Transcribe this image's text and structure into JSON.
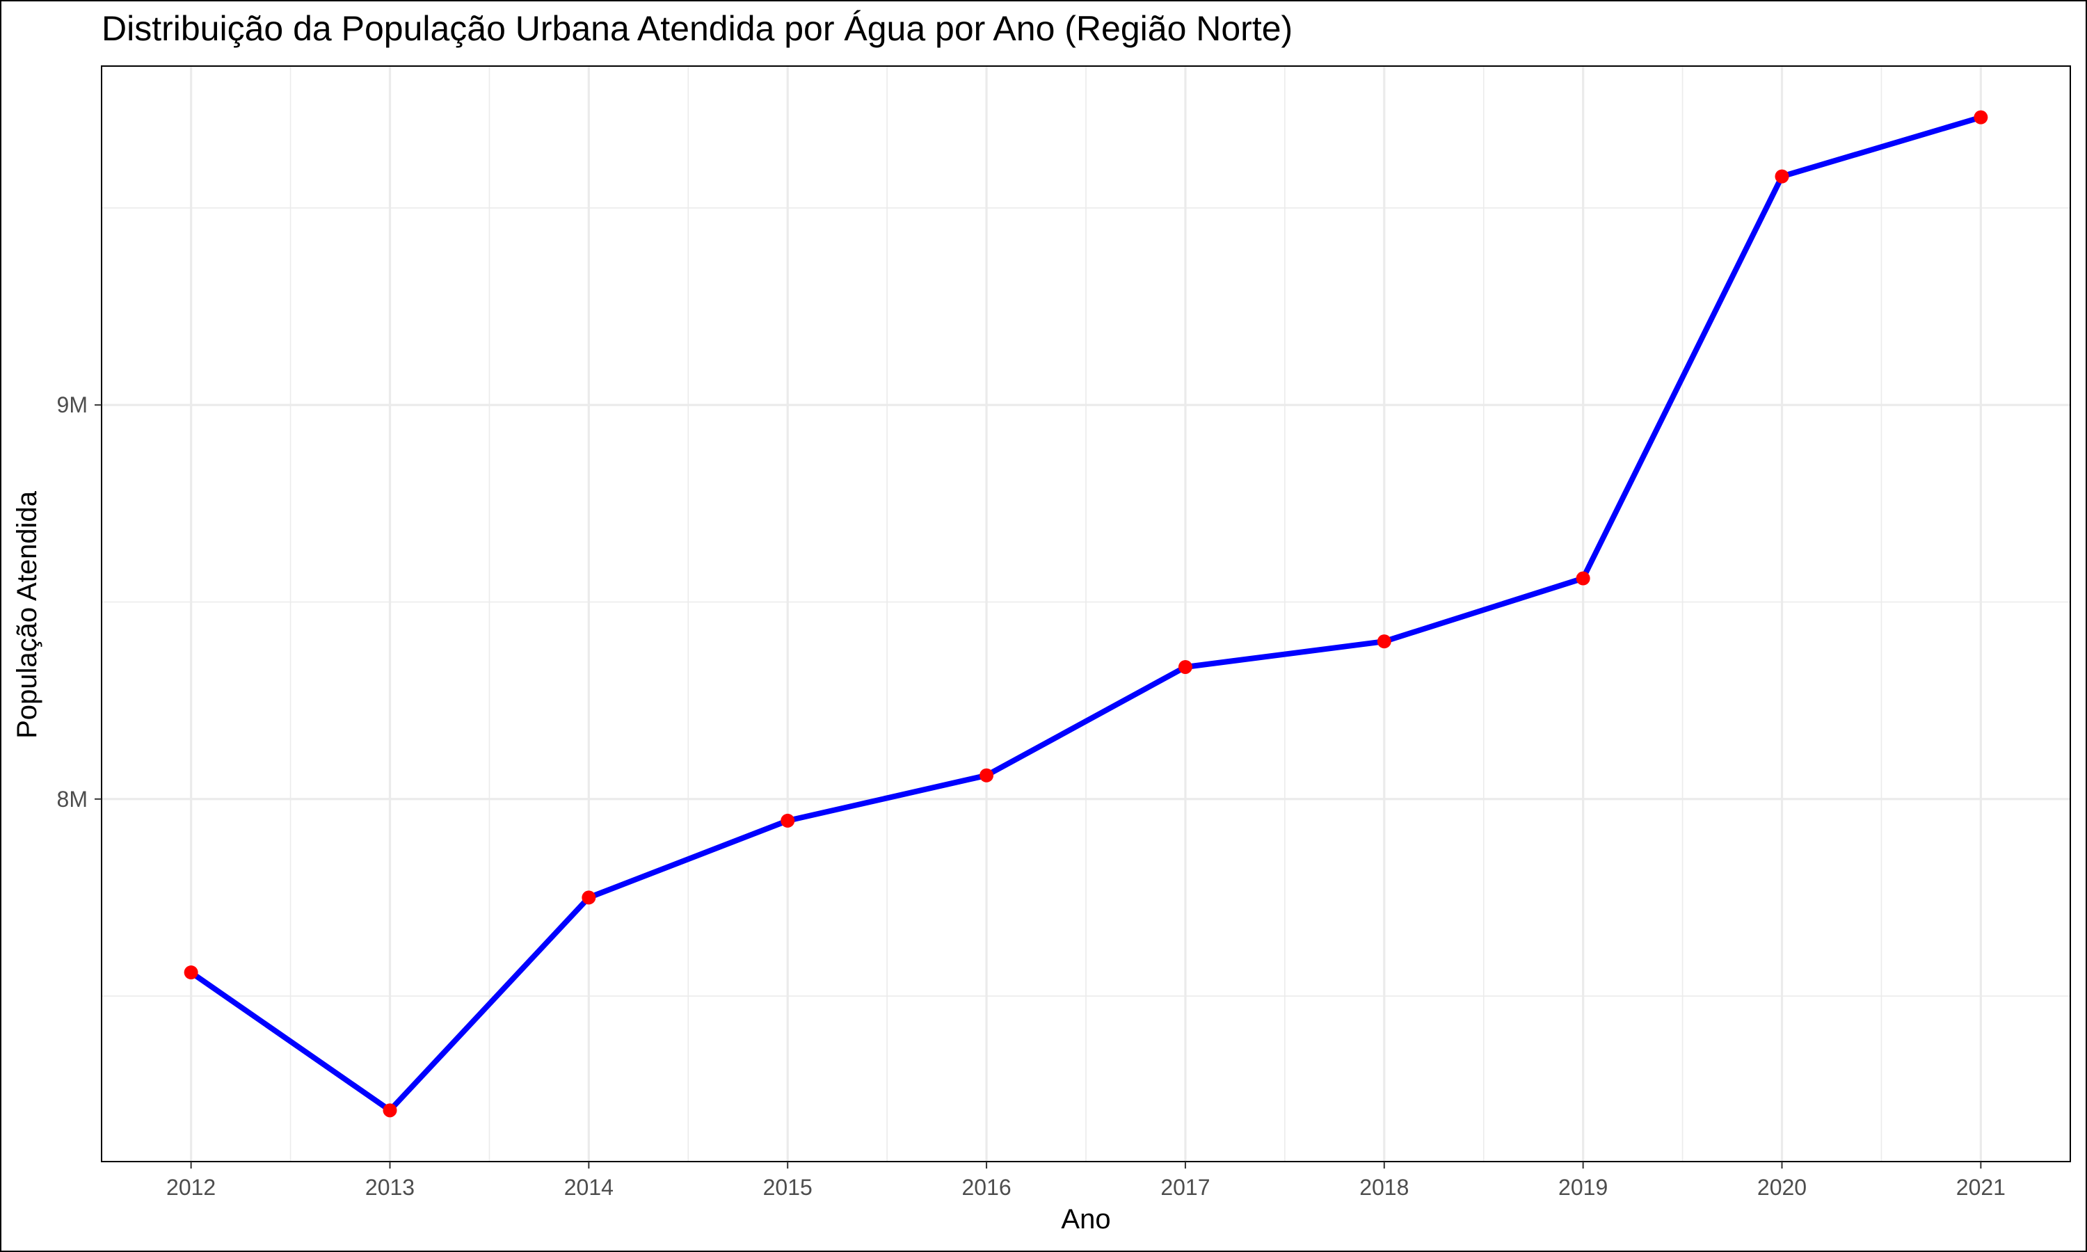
{
  "chart_data": {
    "type": "line",
    "title": "Distribuição da População Urbana Atendida por Água por Ano (Região Norte)",
    "xlabel": "Ano",
    "ylabel": "População Atendida",
    "x": [
      2012,
      2013,
      2014,
      2015,
      2016,
      2017,
      2018,
      2019,
      2020,
      2021
    ],
    "x_tick_labels": [
      "2012",
      "2013",
      "2014",
      "2015",
      "2016",
      "2017",
      "2018",
      "2019",
      "2020",
      "2021"
    ],
    "values": [
      7560000,
      7210000,
      7750000,
      7945000,
      8060000,
      8335000,
      8400000,
      8560000,
      9580000,
      9730000
    ],
    "y_ticks": [
      8000000,
      9000000
    ],
    "y_tick_labels": [
      "8M",
      "9M"
    ],
    "ylim": [
      7080000,
      9860000
    ],
    "xlim": [
      2011.55,
      2021.45
    ],
    "grid": true,
    "legend": "none",
    "colors": {
      "line": "#0000ff",
      "points": "#ff0000",
      "grid": "#ebebeb",
      "border": "#000000"
    }
  }
}
